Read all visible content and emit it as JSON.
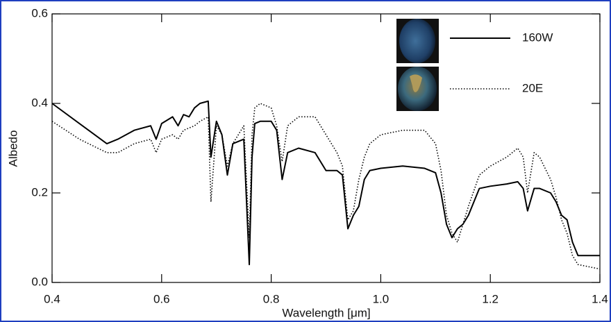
{
  "chart_data": {
    "type": "line",
    "xlabel": "Wavelength [μm]",
    "ylabel": "Albedo",
    "xlim": [
      0.4,
      1.4
    ],
    "xticks": [
      0.4,
      0.6,
      0.8,
      {
        "value": 1,
        "label": "1.0"
      },
      1.2,
      1.4
    ],
    "ylim": [
      0,
      0.6
    ],
    "yticks": [
      {
        "value": 0,
        "label": "0.0"
      },
      0.2,
      0.4,
      0.6
    ],
    "legend": "upper right",
    "x": [
      0.4,
      0.45,
      0.5,
      0.52,
      0.55,
      0.58,
      0.59,
      0.6,
      0.62,
      0.63,
      0.64,
      0.65,
      0.66,
      0.67,
      0.685,
      0.69,
      0.7,
      0.71,
      0.72,
      0.73,
      0.75,
      0.76,
      0.765,
      0.77,
      0.78,
      0.8,
      0.81,
      0.82,
      0.83,
      0.85,
      0.88,
      0.9,
      0.92,
      0.93,
      0.94,
      0.95,
      0.96,
      0.97,
      0.98,
      1.0,
      1.04,
      1.08,
      1.1,
      1.11,
      1.12,
      1.13,
      1.14,
      1.15,
      1.16,
      1.18,
      1.2,
      1.23,
      1.25,
      1.26,
      1.268,
      1.28,
      1.29,
      1.31,
      1.32,
      1.33,
      1.34,
      1.35,
      1.36,
      1.4
    ],
    "series": [
      {
        "name": "160W",
        "color": "#000000",
        "style": "solid",
        "values": [
          0.4,
          0.355,
          0.31,
          0.32,
          0.34,
          0.35,
          0.32,
          0.355,
          0.37,
          0.35,
          0.375,
          0.37,
          0.39,
          0.4,
          0.405,
          0.28,
          0.36,
          0.33,
          0.24,
          0.31,
          0.32,
          0.04,
          0.28,
          0.355,
          0.36,
          0.36,
          0.34,
          0.23,
          0.29,
          0.3,
          0.29,
          0.25,
          0.25,
          0.24,
          0.12,
          0.15,
          0.17,
          0.23,
          0.25,
          0.255,
          0.26,
          0.255,
          0.245,
          0.2,
          0.13,
          0.1,
          0.12,
          0.13,
          0.15,
          0.21,
          0.215,
          0.22,
          0.225,
          0.21,
          0.16,
          0.21,
          0.21,
          0.2,
          0.18,
          0.15,
          0.14,
          0.09,
          0.06,
          0.06
        ]
      },
      {
        "name": "20E",
        "color": "#000000",
        "style": "dotted",
        "values": [
          0.36,
          0.32,
          0.29,
          0.29,
          0.31,
          0.32,
          0.29,
          0.32,
          0.33,
          0.32,
          0.34,
          0.345,
          0.35,
          0.36,
          0.37,
          0.18,
          0.35,
          0.33,
          0.26,
          0.31,
          0.35,
          0.1,
          0.33,
          0.39,
          0.4,
          0.39,
          0.35,
          0.27,
          0.35,
          0.37,
          0.37,
          0.33,
          0.29,
          0.26,
          0.14,
          0.16,
          0.23,
          0.28,
          0.31,
          0.33,
          0.34,
          0.34,
          0.31,
          0.25,
          0.15,
          0.11,
          0.09,
          0.13,
          0.17,
          0.24,
          0.26,
          0.28,
          0.3,
          0.28,
          0.2,
          0.29,
          0.28,
          0.23,
          0.19,
          0.14,
          0.11,
          0.06,
          0.04,
          0.03
        ]
      }
    ]
  }
}
